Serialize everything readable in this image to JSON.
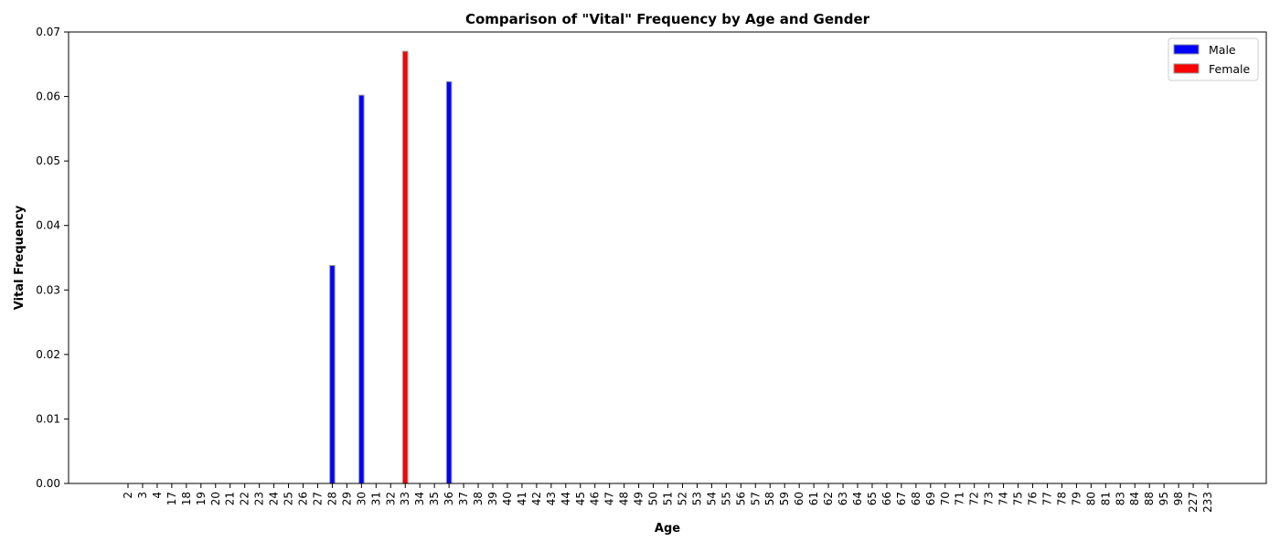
{
  "chart_data": {
    "type": "bar",
    "title": "Comparison of \"Vital\" Frequency by Age and Gender",
    "xlabel": "Age",
    "ylabel": "Vital Frequency",
    "ylim": [
      0,
      0.07
    ],
    "yticks": [
      "0.00",
      "0.01",
      "0.02",
      "0.03",
      "0.04",
      "0.05",
      "0.06",
      "0.07"
    ],
    "grid": false,
    "legend_position": "top-right",
    "categories": [
      "2",
      "3",
      "4",
      "17",
      "18",
      "19",
      "20",
      "21",
      "22",
      "23",
      "24",
      "25",
      "26",
      "27",
      "28",
      "29",
      "30",
      "31",
      "32",
      "33",
      "34",
      "35",
      "36",
      "37",
      "38",
      "39",
      "40",
      "41",
      "42",
      "43",
      "44",
      "45",
      "46",
      "47",
      "48",
      "49",
      "50",
      "51",
      "52",
      "53",
      "54",
      "55",
      "56",
      "57",
      "58",
      "59",
      "60",
      "61",
      "62",
      "63",
      "64",
      "65",
      "66",
      "67",
      "68",
      "69",
      "70",
      "71",
      "72",
      "73",
      "74",
      "75",
      "76",
      "77",
      "78",
      "79",
      "80",
      "81",
      "83",
      "84",
      "88",
      "95",
      "98",
      "227",
      "233"
    ],
    "series": [
      {
        "name": "Male",
        "color": "#0000ff",
        "values": [
          0,
          0,
          0,
          0,
          0,
          0,
          0,
          0,
          0,
          0,
          0,
          0,
          0,
          0,
          0.0338,
          0,
          0.0602,
          0,
          0,
          0,
          0,
          0,
          0.0623,
          0,
          0,
          0,
          0,
          0,
          0,
          0,
          0,
          0,
          0,
          0,
          0,
          0,
          0,
          0,
          0,
          0,
          0,
          0,
          0,
          0,
          0,
          0,
          0,
          0,
          0,
          0,
          0,
          0,
          0,
          0,
          0,
          0,
          0,
          0,
          0,
          0,
          0,
          0,
          0,
          0,
          0,
          0,
          0,
          0,
          0,
          0,
          0,
          0,
          0,
          0,
          0
        ]
      },
      {
        "name": "Female",
        "color": "#ff0000",
        "values": [
          0,
          0,
          0,
          0,
          0,
          0,
          0,
          0,
          0,
          0,
          0,
          0,
          0,
          0,
          0,
          0,
          0,
          0,
          0,
          0.067,
          0,
          0,
          0,
          0,
          0,
          0,
          0,
          0,
          0,
          0,
          0,
          0,
          0,
          0,
          0,
          0,
          0,
          0,
          0,
          0,
          0,
          0,
          0,
          0,
          0,
          0,
          0,
          0,
          0,
          0,
          0,
          0,
          0,
          0,
          0,
          0,
          0,
          0,
          0,
          0,
          0,
          0,
          0,
          0,
          0,
          0,
          0,
          0,
          0,
          0,
          0,
          0,
          0,
          0,
          0
        ]
      }
    ]
  }
}
